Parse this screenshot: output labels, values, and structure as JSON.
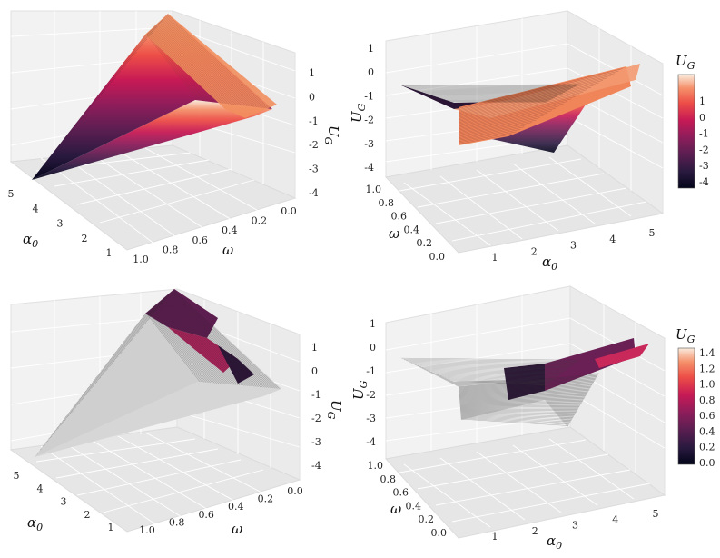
{
  "chart_data": [
    {
      "type": "surface3d",
      "panel": "top-left",
      "xlabel": "ω",
      "ylabel": "α",
      "ylabel_sub": "0",
      "zlabel": "U",
      "zlabel_sub": "G",
      "omega_range": [
        0.0,
        1.0
      ],
      "omega_ticks": [
        "1.0",
        "0.8",
        "0.6",
        "0.4",
        "0.2",
        "0.0"
      ],
      "alpha_range": [
        0.5,
        5.2
      ],
      "alpha_ticks": [
        "1",
        "2",
        "3",
        "4",
        "5"
      ],
      "z_range": [
        -4.5,
        1.5
      ],
      "z_ticks": [
        "1",
        "0",
        "-1",
        "-2",
        "-3",
        "-4"
      ],
      "surface_min": -4.3,
      "surface_max": 1.3,
      "colormap": "rocket",
      "grid": true
    },
    {
      "type": "surface3d",
      "panel": "top-right",
      "xlabel": "α",
      "xlabel_sub": "0",
      "ylabel": "ω",
      "zlabel": "U",
      "zlabel_sub": "G",
      "alpha_ticks": [
        "1",
        "2",
        "3",
        "4",
        "5"
      ],
      "omega_ticks": [
        "1.0",
        "0.8",
        "0.6",
        "0.4",
        "0.2",
        "0.0"
      ],
      "z_ticks": [
        "1",
        "0",
        "-1",
        "-2",
        "-3",
        "-4"
      ],
      "colorbar": {
        "title": "U",
        "title_sub": "G",
        "ticks": [
          "1",
          "0",
          "-1",
          "-2",
          "-3",
          "-4"
        ],
        "range": [
          -4.3,
          1.3
        ],
        "colormap": "rocket"
      },
      "grid": true
    },
    {
      "type": "surface3d",
      "panel": "bottom-left",
      "xlabel": "ω",
      "ylabel": "α",
      "ylabel_sub": "0",
      "zlabel": "U",
      "zlabel_sub": "G",
      "omega_ticks": [
        "1.0",
        "0.8",
        "0.6",
        "0.4",
        "0.2",
        "0.0"
      ],
      "alpha_ticks": [
        "1",
        "2",
        "3",
        "4",
        "5"
      ],
      "z_ticks": [
        "1",
        "0",
        "-1",
        "-2",
        "-3",
        "-4"
      ],
      "colormap": "rocket (colored by second quantity, grey where zero)",
      "grid": true
    },
    {
      "type": "surface3d",
      "panel": "bottom-right",
      "xlabel": "α",
      "xlabel_sub": "0",
      "ylabel": "ω",
      "zlabel": "U",
      "zlabel_sub": "G",
      "alpha_ticks": [
        "1",
        "2",
        "3",
        "4",
        "5"
      ],
      "omega_ticks": [
        "1.0",
        "0.8",
        "0.6",
        "0.4",
        "0.2",
        "0.0"
      ],
      "z_ticks": [
        "1",
        "0",
        "-1",
        "-2",
        "-3",
        "-4"
      ],
      "colorbar": {
        "title": "U",
        "title_sub": "G",
        "ticks": [
          "1.4",
          "1.2",
          "1.0",
          "0.8",
          "0.6",
          "0.4",
          "0.2",
          "0.0"
        ],
        "range": [
          0.0,
          1.45
        ],
        "colormap": "rocket"
      },
      "grid": true
    }
  ]
}
